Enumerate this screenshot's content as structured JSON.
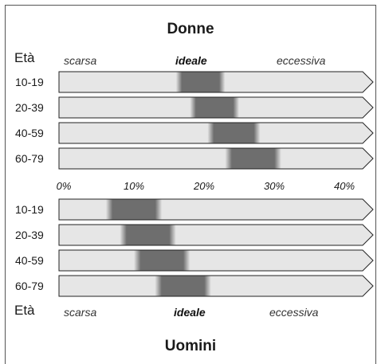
{
  "chart_data": {
    "type": "bar",
    "axis": {
      "ticks": [
        "0%",
        "10%",
        "20%",
        "30%",
        "40%"
      ],
      "min": 0,
      "max": 40
    },
    "axis_label": "Età",
    "categories_band": [
      "scarsa",
      "ideale",
      "eccessiva"
    ],
    "panels": [
      {
        "name": "Donne",
        "rows": [
          {
            "age": "10-19",
            "ideal_from": 16,
            "ideal_to": 23
          },
          {
            "age": "20-39",
            "ideal_from": 18,
            "ideal_to": 25
          },
          {
            "age": "40-59",
            "ideal_from": 20.5,
            "ideal_to": 28
          },
          {
            "age": "60-79",
            "ideal_from": 23,
            "ideal_to": 31
          }
        ]
      },
      {
        "name": "Uomini",
        "rows": [
          {
            "age": "10-19",
            "ideal_from": 6,
            "ideal_to": 14
          },
          {
            "age": "20-39",
            "ideal_from": 8,
            "ideal_to": 16
          },
          {
            "age": "40-59",
            "ideal_from": 10,
            "ideal_to": 18
          },
          {
            "age": "60-79",
            "ideal_from": 13,
            "ideal_to": 21
          }
        ]
      }
    ]
  },
  "colors": {
    "bar_fill": "#e6e6e6",
    "bar_stroke": "#222222",
    "ideal_band": "#6e6e6e"
  }
}
